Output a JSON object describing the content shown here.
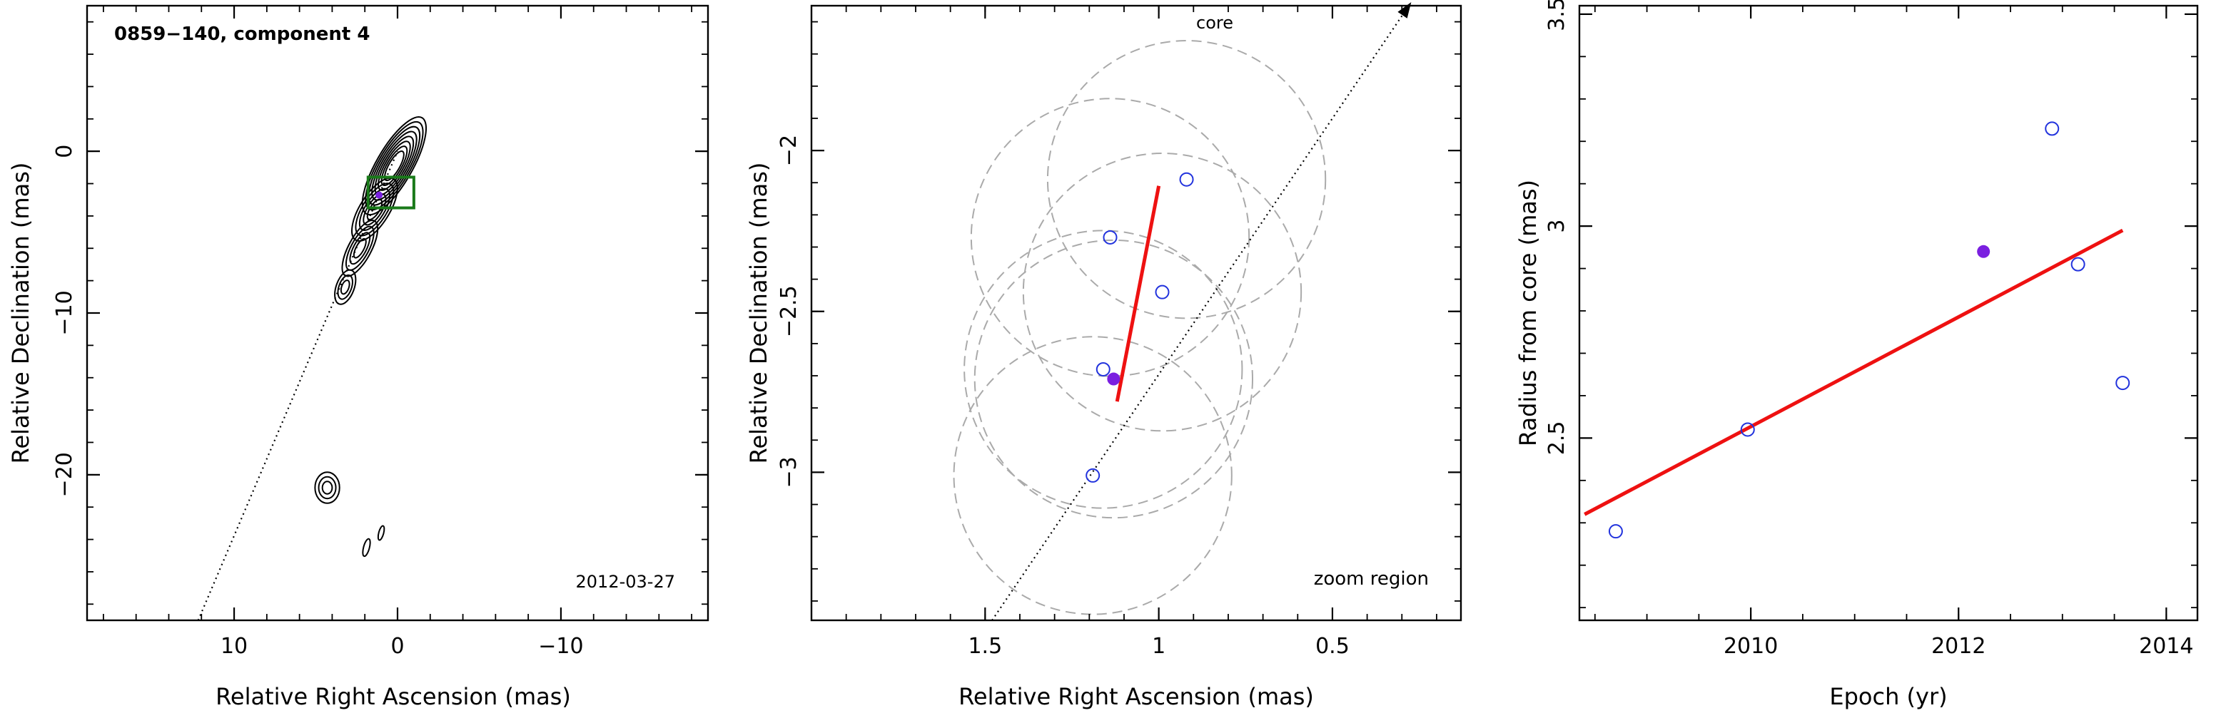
{
  "chart_data": [
    {
      "type": "contour",
      "title": "0859−140, component 4",
      "annotation": "2012-03-27",
      "xlabel": "Relative Right Ascension (mas)",
      "ylabel": "Relative Declination (mas)",
      "xlim": [
        19,
        -19
      ],
      "ylim": [
        -29,
        9
      ],
      "x_ticks": [
        10,
        0,
        -10
      ],
      "x_tick_labels": [
        "10",
        "0",
        "−10"
      ],
      "y_ticks": [
        0,
        -10,
        -20
      ],
      "y_tick_labels": [
        "0",
        "−10",
        "−20"
      ],
      "zoom_box": {
        "x": [
          -1,
          1.8
        ],
        "y": [
          -3.5,
          -1.6
        ],
        "color": "#1a7a1a"
      },
      "marker": {
        "x": 1.13,
        "y": -2.71,
        "color": "#7a1fe0"
      },
      "jet_axis": {
        "x": [
          12.2,
          0
        ],
        "y": [
          -29,
          0
        ]
      }
    },
    {
      "type": "scatter",
      "annotations": [
        "core",
        "zoom region"
      ],
      "xlabel": "Relative Right Ascension (mas)",
      "ylabel": "Relative Declination (mas)",
      "xlim": [
        2.0,
        0.13
      ],
      "ylim": [
        -3.46,
        -1.55
      ],
      "x_ticks": [
        1.5,
        1,
        0.5
      ],
      "x_tick_labels": [
        "1.5",
        "1",
        "0.5"
      ],
      "y_ticks": [
        -2,
        -2.5,
        -3
      ],
      "y_tick_labels": [
        "−2",
        "−2.5",
        "−3"
      ],
      "points": [
        {
          "x": 0.92,
          "y": -2.09
        },
        {
          "x": 1.14,
          "y": -2.27
        },
        {
          "x": 0.99,
          "y": -2.44
        },
        {
          "x": 1.16,
          "y": -2.68
        },
        {
          "x": 1.19,
          "y": -3.01
        }
      ],
      "highlight": {
        "x": 1.13,
        "y": -2.71,
        "color": "#7a1fe0"
      },
      "circles": [
        {
          "x": 0.92,
          "y": -2.09,
          "r": 0.4
        },
        {
          "x": 1.14,
          "y": -2.27,
          "r": 0.4
        },
        {
          "x": 0.99,
          "y": -2.44,
          "r": 0.4
        },
        {
          "x": 1.16,
          "y": -2.68,
          "r": 0.4
        },
        {
          "x": 1.13,
          "y": -2.71,
          "r": 0.4
        },
        {
          "x": 1.19,
          "y": -3.01,
          "r": 0.4
        }
      ],
      "fit_line": {
        "x": [
          1.12,
          1.0
        ],
        "y": [
          -2.78,
          -2.11
        ],
        "color": "#ee1111"
      },
      "core_axis": {
        "x": [
          1.48,
          0.28
        ],
        "y": [
          -3.46,
          -1.55
        ]
      },
      "point_color": "#2233dd"
    },
    {
      "type": "scatter",
      "xlabel": "Epoch (yr)",
      "ylabel": "Radius from core (mas)",
      "xlim": [
        2008.35,
        2014.3
      ],
      "ylim": [
        2.07,
        3.52
      ],
      "x_ticks": [
        2010,
        2012,
        2014
      ],
      "x_tick_labels": [
        "2010",
        "2012",
        "2014"
      ],
      "y_ticks": [
        2.5,
        3,
        3.5
      ],
      "y_tick_labels": [
        "2.5",
        "3",
        "3.5"
      ],
      "points": [
        {
          "x": 2008.7,
          "y": 2.28
        },
        {
          "x": 2009.97,
          "y": 2.52
        },
        {
          "x": 2012.9,
          "y": 3.23
        },
        {
          "x": 2013.15,
          "y": 2.91
        },
        {
          "x": 2013.58,
          "y": 2.63
        }
      ],
      "highlight": {
        "x": 2012.24,
        "y": 2.94,
        "color": "#7a1fe0"
      },
      "fit_line": {
        "x": [
          2008.4,
          2013.58
        ],
        "y": [
          2.32,
          2.99
        ],
        "color": "#ee1111"
      },
      "point_color": "#2233dd"
    }
  ]
}
